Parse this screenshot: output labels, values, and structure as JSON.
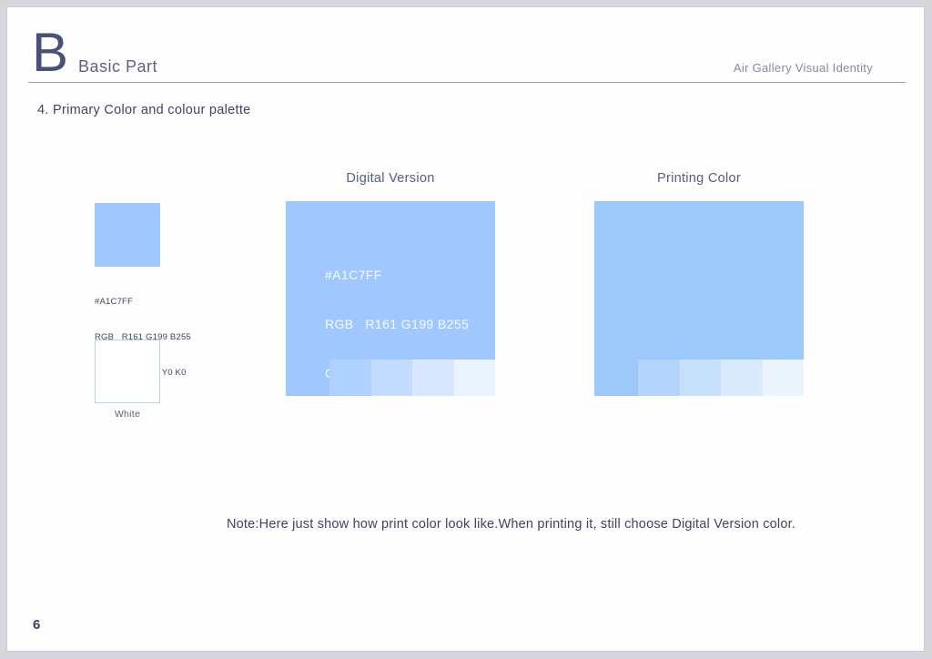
{
  "header": {
    "letter": "B",
    "title": "Basic Part",
    "doc_title": "Air Gallery Visual Identity"
  },
  "section_heading": "4. Primary Color and colour palette",
  "specs": {
    "hex": "#A1C7FF",
    "rgb": "RGB   R161 G199 B255",
    "cmyk": "CMYK C44 M15 Y0 K0"
  },
  "white_swatch": {
    "label": "White",
    "fill": "#FFFFFF",
    "border": "#B9D3F2"
  },
  "digital": {
    "label": "Digital Version",
    "main_color": "#A1C7FF",
    "tints": [
      "#AFD1FF",
      "#C4DCFF",
      "#D8E7FF",
      "#EBF3FF"
    ]
  },
  "printing": {
    "label": "Printing Color",
    "main_color": "#9CC9FA",
    "tints": [
      "#B3D5FB",
      "#C7E0FC",
      "#DAEAFD",
      "#ECF4FE"
    ]
  },
  "note": "Note:Here just show how print color look like.When printing it, still choose Digital Version color.",
  "page_number": "6"
}
